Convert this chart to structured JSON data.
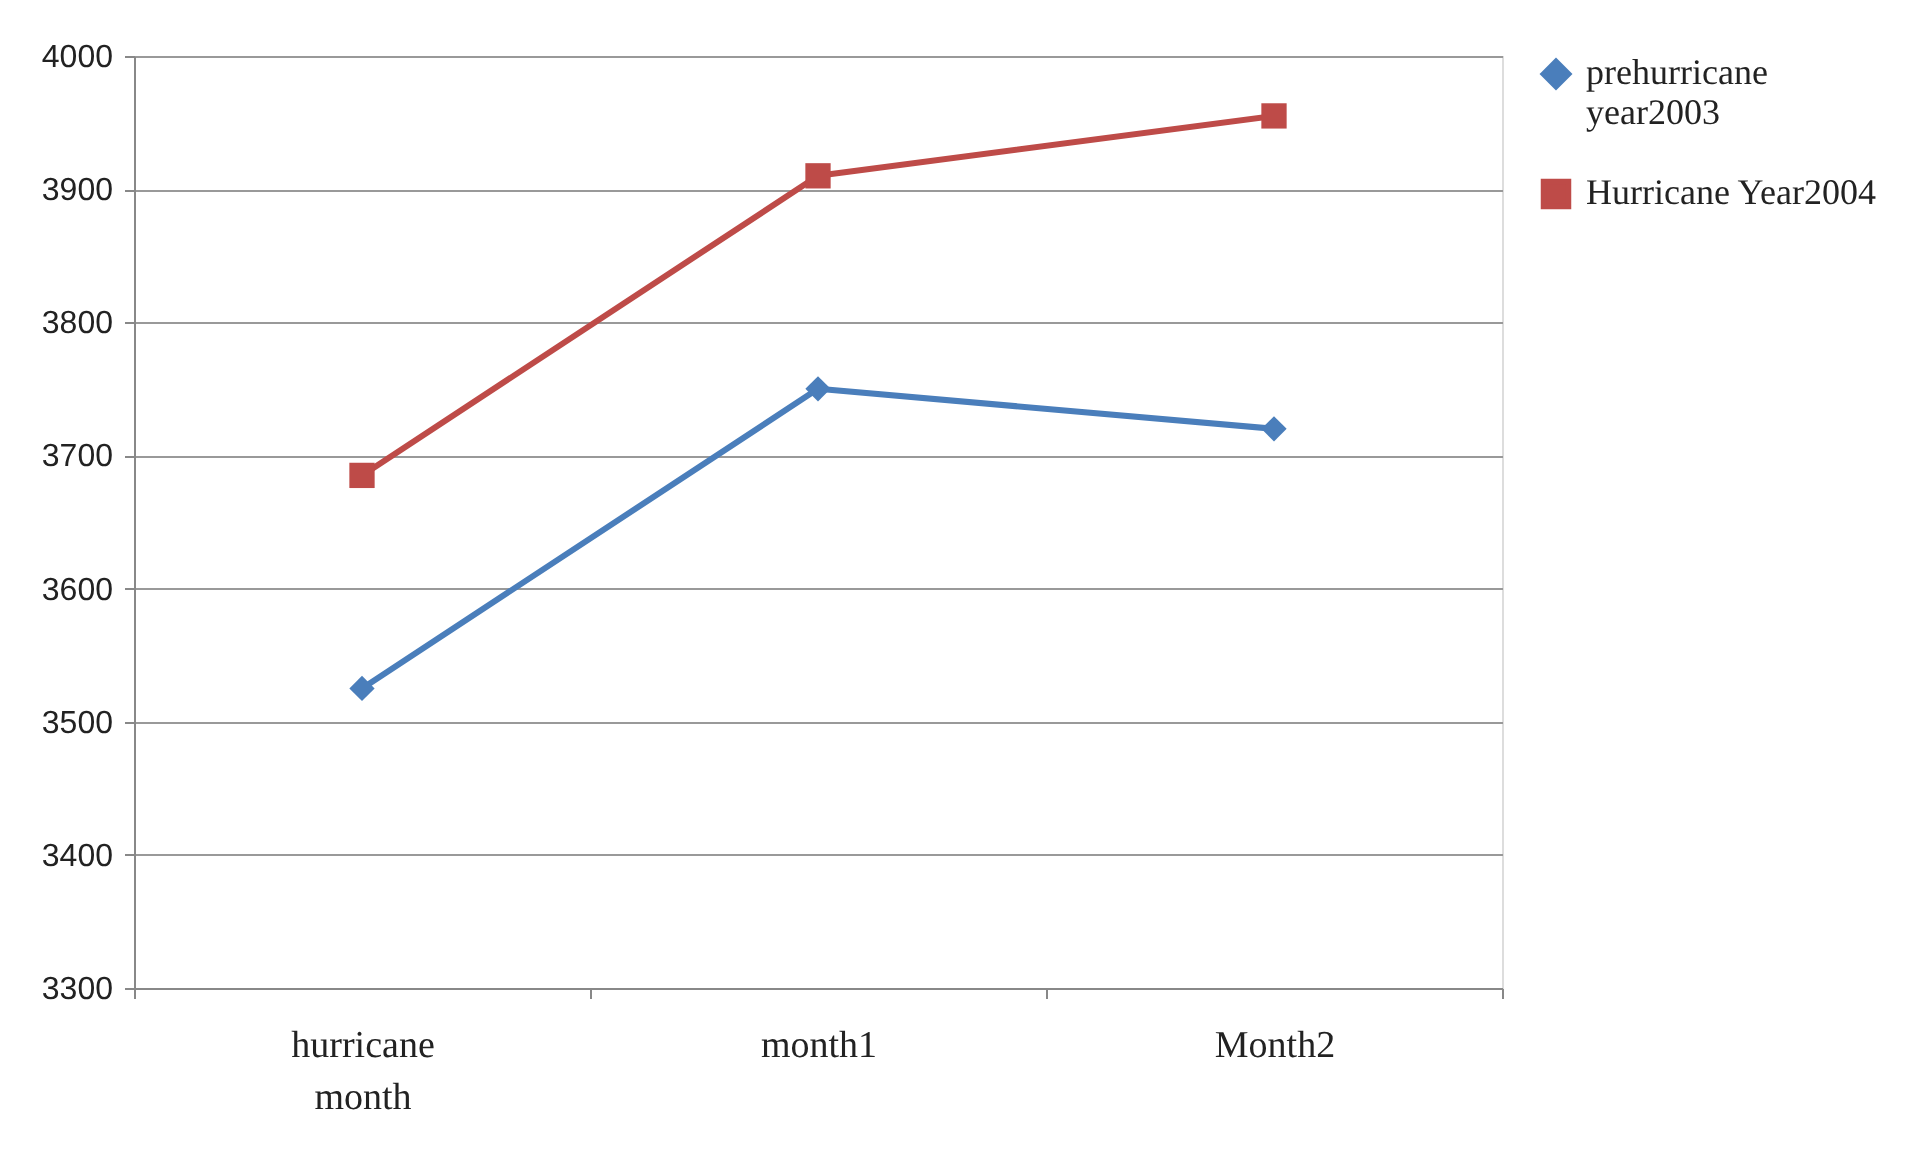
{
  "chart_data": {
    "type": "line",
    "categories": [
      "hurricane month",
      "month1",
      "Month2"
    ],
    "series": [
      {
        "name": "prehurricane year2003",
        "color": "#4a7ebb",
        "marker": "diamond",
        "values": [
          3525,
          3750,
          3720
        ]
      },
      {
        "name": "Hurricane Year2004",
        "color": "#be4b48",
        "marker": "square",
        "values": [
          3685,
          3910,
          3955
        ]
      }
    ],
    "ylim": [
      3300,
      4000
    ],
    "yticks": [
      3300,
      3400,
      3500,
      3600,
      3700,
      3800,
      3900,
      4000
    ],
    "grid": "y",
    "legend": "right"
  }
}
